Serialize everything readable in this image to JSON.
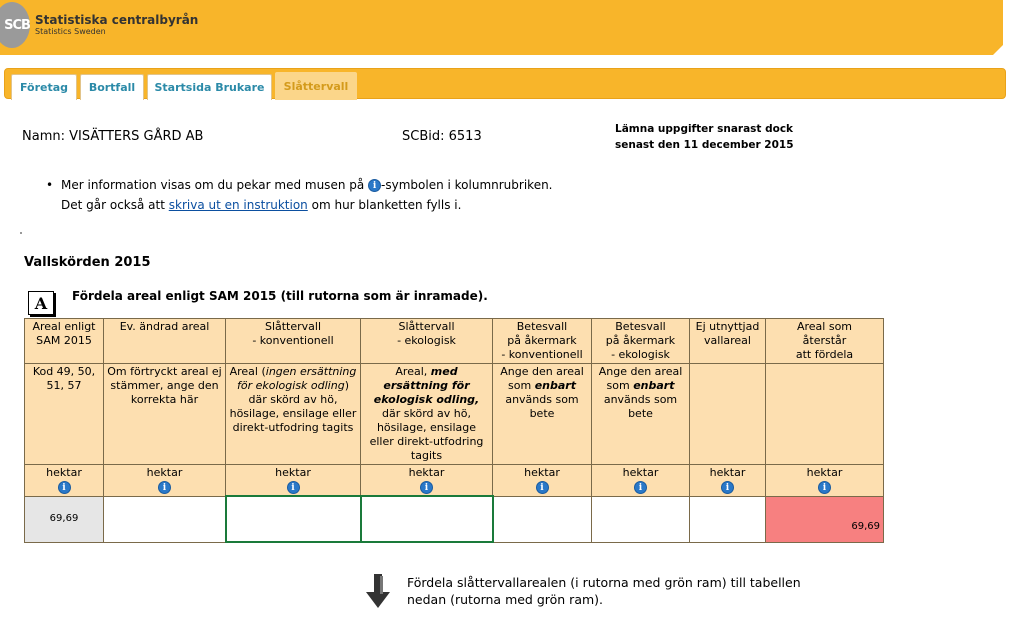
{
  "header": {
    "logo_text": "SCB",
    "brand_name": "Statistiska centralbyrån",
    "brand_sub": "Statistics Sweden",
    "colors": {
      "bar": "#f8b52a",
      "logo": "#9a9a9a"
    }
  },
  "tabs": [
    {
      "label": "Företag"
    },
    {
      "label": "Bortfall"
    },
    {
      "label": "Startsida Brukare"
    },
    {
      "label": "Slåttervall"
    }
  ],
  "info": {
    "name_label": "Namn:",
    "name_value": "VISÄTTERS GÅRD AB",
    "scbid_label": "SCBid:",
    "scbid_value": "6513",
    "deadline_line1": "Lämna uppgifter snarast dock",
    "deadline_line2": "senast den 11 december 2015"
  },
  "help": {
    "line1_pre": "Mer information visas om du pekar med musen på ",
    "line1_post": "-symbolen i kolumnrubriken.",
    "line2_pre": "Det går också att ",
    "line2_link": "skriva ut en instruktion",
    "line2_post": " om hur blanketten fylls i."
  },
  "section": {
    "title": "Vallskörden 2015",
    "box_letter": "A",
    "instruction": "Fördela areal enligt SAM 2015 (till rutorna som är inramade)."
  },
  "table": {
    "unit": "hektar",
    "headers": [
      [
        "Areal enligt",
        "SAM 2015"
      ],
      [
        "Ev. ändrad areal"
      ],
      [
        "Slåttervall",
        "- konventionell"
      ],
      [
        "Slåttervall",
        "- ekologisk"
      ],
      [
        "Betesvall",
        "på åkermark",
        "- konventionell"
      ],
      [
        "Betesvall",
        "på åkermark",
        "- ekologisk"
      ],
      [
        "Ej utnyttjad",
        "vallareal"
      ],
      [
        "Areal som",
        "återstår",
        "att fördela"
      ]
    ],
    "descriptions": [
      "Kod 49, 50, 51, 57",
      "Om förtryckt areal ej stämmer, ange den korrekta här",
      "",
      "",
      "",
      "",
      "",
      ""
    ],
    "desc_slatt_konv": {
      "a": "Areal (",
      "b": "ingen ersättning för ekologisk odling",
      "c": ") där skörd av hö, hösilage, ensilage eller direkt-utfodring tagits"
    },
    "desc_slatt_eko": {
      "a": "Areal, ",
      "b": "med ersättning för ekologisk odling,",
      "c": " där skörd av hö, hösilage, ensilage eller direkt-utfodring tagits"
    },
    "desc_bete_konv": {
      "a": "Ange den areal som ",
      "b": "enbart",
      "c": " används som bete"
    },
    "desc_bete_eko": {
      "a": "Ange den areal som ",
      "b": "enbart",
      "c": " används som bete"
    },
    "values": {
      "sam": "69,69",
      "remaining": "69,69"
    },
    "colors": {
      "header_bg": "#fddfb0",
      "remaining_bg": "#f78080",
      "frame_green": "#1a7a3a"
    }
  },
  "bottom": {
    "text_line1": "Fördela slåttervallarealen (i rutorna med grön ram) till tabellen",
    "text_line2": "nedan (rutorna med grön ram)."
  },
  "icons": {
    "info": "info-icon",
    "arrow": "arrow-down-icon"
  }
}
